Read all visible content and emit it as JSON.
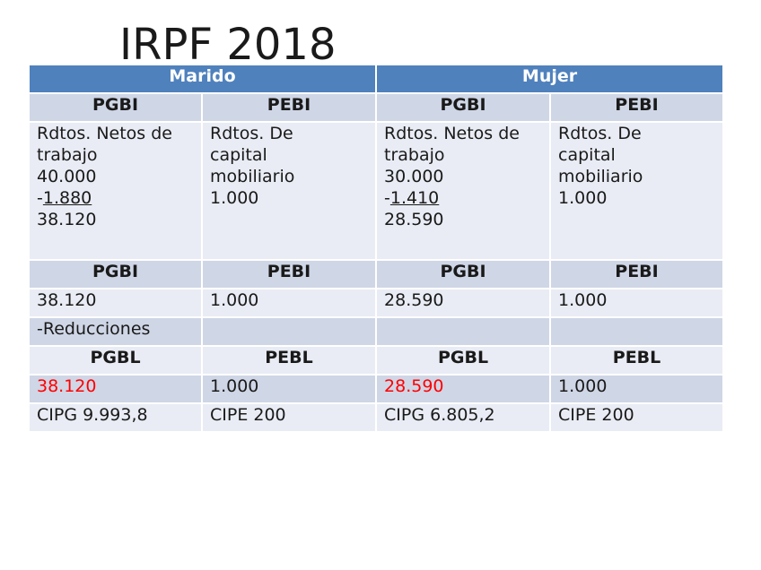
{
  "title": "IRPF 2018",
  "header": {
    "marido": "Marido",
    "mujer": "Mujer"
  },
  "sub1": [
    "PGBI",
    "PEBI",
    "PGBI",
    "PEBI"
  ],
  "rendimientos": {
    "marido_trabajo": {
      "label_line1": "Rdtos. Netos de",
      "label_line2": "trabajo",
      "bruto": "40.000",
      "dash": "-",
      "gasto": "1.880",
      "neto": "38.120"
    },
    "marido_capital": {
      "line1": "Rdtos. De",
      "line2": "capital",
      "line3": "mobiliario",
      "value": "1.000"
    },
    "mujer_trabajo": {
      "label_line1": "Rdtos. Netos de",
      "label_line2": "trabajo",
      "bruto": "30.000",
      "dash": "-",
      "gasto": "1.410",
      "neto": "28.590"
    },
    "mujer_capital": {
      "line1": "Rdtos. De",
      "line2": "capital",
      "line3": "mobiliario",
      "value": "1.000"
    }
  },
  "sub2": [
    "PGBI",
    "PEBI",
    "PGBI",
    "PEBI"
  ],
  "row_bases": [
    "38.120",
    "1.000",
    "28.590",
    "1.000"
  ],
  "row_reducciones": [
    "-Reducciones",
    "",
    "",
    ""
  ],
  "sub3": [
    "PGBL",
    "PEBL",
    "PGBL",
    "PEBL"
  ],
  "row_liquidables": [
    "38.120",
    "1.000",
    "28.590",
    "1.000"
  ],
  "row_cuotas": [
    "CIPG 9.993,8",
    "CIPE 200",
    "CIPG 6.805,2",
    "CIPE 200"
  ],
  "colors": {
    "header": "#4f81bd",
    "dark_row": "#cfd6e6",
    "light_row": "#e9ecf4",
    "highlight": "#ff0000"
  }
}
